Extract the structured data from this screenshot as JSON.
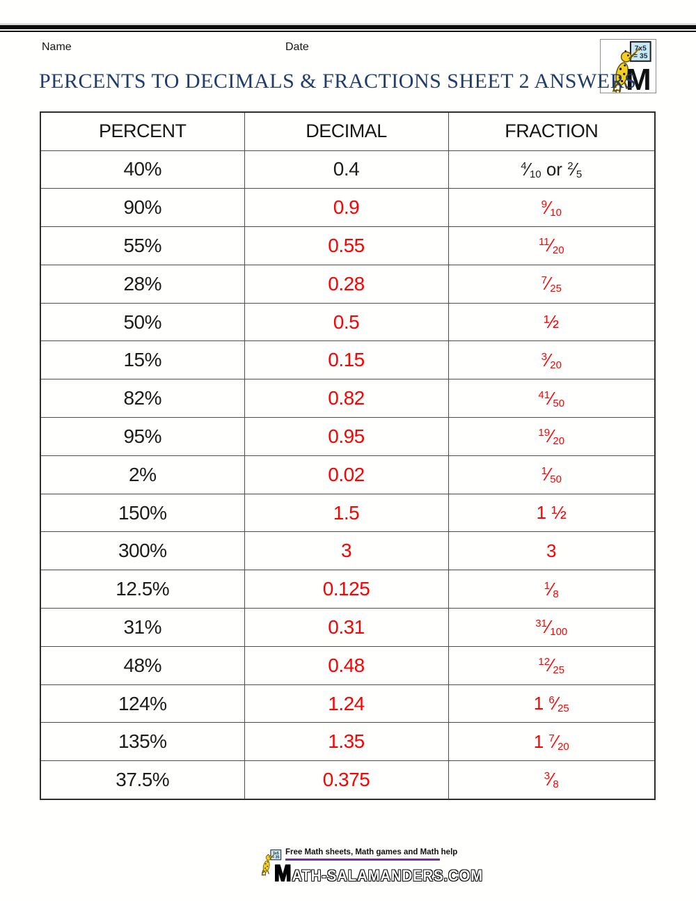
{
  "page": {
    "name_label": "Name",
    "date_label": "Date",
    "title": "PERCENTS TO DECIMALS & FRACTIONS SHEET 2 ANSWERS"
  },
  "logo": {
    "board_top": "7x5",
    "board_bottom": "= 35",
    "letter": "M"
  },
  "table": {
    "headers": [
      "PERCENT",
      "DECIMAL",
      "FRACTION"
    ],
    "rows": [
      {
        "percent": "40%",
        "decimal": "0.4",
        "fraction": "4/10 or 2/5",
        "answer_color": "black"
      },
      {
        "percent": "90%",
        "decimal": "0.9",
        "fraction": "9/10",
        "answer_color": "red"
      },
      {
        "percent": "55%",
        "decimal": "0.55",
        "fraction": "11/20",
        "answer_color": "red"
      },
      {
        "percent": "28%",
        "decimal": "0.28",
        "fraction": "7/25",
        "answer_color": "red"
      },
      {
        "percent": "50%",
        "decimal": "0.5",
        "fraction": "½",
        "answer_color": "red"
      },
      {
        "percent": "15%",
        "decimal": "0.15",
        "fraction": "3/20",
        "answer_color": "red"
      },
      {
        "percent": "82%",
        "decimal": "0.82",
        "fraction": "41/50",
        "answer_color": "red"
      },
      {
        "percent": "95%",
        "decimal": "0.95",
        "fraction": "19/20",
        "answer_color": "red"
      },
      {
        "percent": "2%",
        "decimal": "0.02",
        "fraction": "1/50",
        "answer_color": "red"
      },
      {
        "percent": "150%",
        "decimal": "1.5",
        "fraction": "1 ½",
        "answer_color": "red"
      },
      {
        "percent": "300%",
        "decimal": "3",
        "fraction": "3",
        "answer_color": "red"
      },
      {
        "percent": "12.5%",
        "decimal": "0.125",
        "fraction": "1/8",
        "answer_color": "red"
      },
      {
        "percent": "31%",
        "decimal": "0.31",
        "fraction": "31/100",
        "answer_color": "red"
      },
      {
        "percent": "48%",
        "decimal": "0.48",
        "fraction": "12/25",
        "answer_color": "red"
      },
      {
        "percent": "124%",
        "decimal": "1.24",
        "fraction": "1 6/25",
        "answer_color": "red"
      },
      {
        "percent": "135%",
        "decimal": "1.35",
        "fraction": "1 7/20",
        "answer_color": "red"
      },
      {
        "percent": "37.5%",
        "decimal": "0.375",
        "fraction": "3/8",
        "answer_color": "red"
      }
    ]
  },
  "footer": {
    "tagline": "Free Math sheets, Math games and Math help",
    "site": "MATH-SALAMANDERS.COM"
  },
  "colors": {
    "answer_red": "#ff0000",
    "title_blue": "#1f3c6d",
    "rule_purple": "#7030a0"
  }
}
